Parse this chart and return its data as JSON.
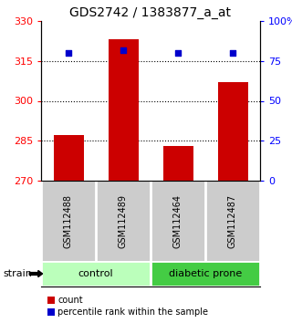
{
  "title": "GDS2742 / 1383877_a_at",
  "samples": [
    "GSM112488",
    "GSM112489",
    "GSM112464",
    "GSM112487"
  ],
  "bar_values": [
    287,
    323,
    283,
    307
  ],
  "percentile_values": [
    80,
    82,
    80,
    80
  ],
  "bar_color": "#cc0000",
  "dot_color": "#0000cc",
  "ylim_left": [
    270,
    330
  ],
  "ylim_right": [
    0,
    100
  ],
  "yticks_left": [
    270,
    285,
    300,
    315,
    330
  ],
  "yticks_right": [
    0,
    25,
    50,
    75,
    100
  ],
  "ytick_labels_right": [
    "0",
    "25",
    "50",
    "75",
    "100%"
  ],
  "groups": [
    {
      "label": "control",
      "indices": [
        0,
        1
      ],
      "color": "#bbffbb"
    },
    {
      "label": "diabetic prone",
      "indices": [
        2,
        3
      ],
      "color": "#44cc44"
    }
  ],
  "legend_count_label": "count",
  "legend_pct_label": "percentile rank within the sample",
  "strain_label": "strain",
  "bar_width": 0.55,
  "grid_lines": [
    285,
    300,
    315
  ],
  "title_fontsize": 10,
  "tick_fontsize": 8,
  "sample_fontsize": 7,
  "group_fontsize": 8,
  "legend_fontsize": 7
}
